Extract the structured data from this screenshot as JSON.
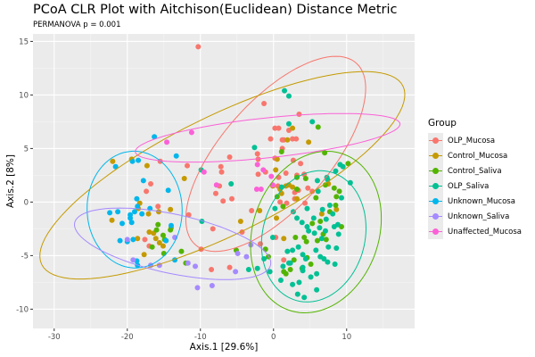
{
  "chart_data": {
    "type": "scatter",
    "title": "PCoA CLR Plot with Aitchison(Euclidean) Distance Metric",
    "subtitle": "PERMANOVA p = 0.001",
    "xlabel": "Axis.1   [29.6%]",
    "ylabel": "Axis.2   [8%]",
    "xlim": [
      -32.9,
      19.3
    ],
    "ylim": [
      -11.8,
      15.7
    ],
    "x_ticks": [
      -30,
      -20,
      -10,
      0,
      10
    ],
    "y_ticks": [
      15,
      10,
      5,
      0,
      -5,
      -10
    ],
    "x_tick_labels": [
      "-30",
      "-20",
      "-10",
      "0",
      "10"
    ],
    "y_tick_labels": [
      "15",
      "10",
      "5",
      "0",
      "-5",
      "-10"
    ],
    "grid": true,
    "legend_title": "Group",
    "legend_position": "right",
    "series": [
      {
        "name": "OLP_Mucosa",
        "color": "#F8766D",
        "ellipse": {
          "cx": 0.3,
          "cy": 4.5,
          "rx": 16.5,
          "ry": 7.3,
          "angle": 48
        },
        "points": [
          [
            -10.3,
            14.5
          ],
          [
            -1.3,
            9.2
          ],
          [
            3.5,
            8.2
          ],
          [
            0.2,
            6.9
          ],
          [
            0.7,
            6.9
          ],
          [
            2.1,
            6.7
          ],
          [
            -0.4,
            5.9
          ],
          [
            1.2,
            5.8
          ],
          [
            1.4,
            5.8
          ],
          [
            2.6,
            5.9
          ],
          [
            3.1,
            5.9
          ],
          [
            1.2,
            5.0
          ],
          [
            -6,
            4.2
          ],
          [
            -2.2,
            4.5
          ],
          [
            -2.1,
            4.0
          ],
          [
            0.2,
            4.1
          ],
          [
            3.7,
            3.6
          ],
          [
            2.7,
            3.9
          ],
          [
            -7.2,
            3.3
          ],
          [
            -7.1,
            2.8
          ],
          [
            -1.1,
            2.8
          ],
          [
            0.7,
            2.3
          ],
          [
            3.2,
            2.5
          ],
          [
            4.2,
            2.6
          ],
          [
            -2.1,
            2.6
          ],
          [
            1.7,
            2.7
          ],
          [
            3.4,
            1.1
          ],
          [
            5.3,
            1.0
          ],
          [
            0.6,
            1.5
          ],
          [
            4.7,
            1.3
          ],
          [
            2.9,
            0.9
          ],
          [
            4.3,
            -0.1
          ],
          [
            1.8,
            -0.1
          ],
          [
            0.9,
            0.0
          ],
          [
            2.9,
            0.3
          ],
          [
            -6.9,
            0.1
          ],
          [
            -15.5,
            3.8
          ],
          [
            -16.8,
            1.7
          ],
          [
            -17.4,
            1.0
          ],
          [
            -15.8,
            -0.4
          ],
          [
            -11.8,
            3.4
          ],
          [
            -11.6,
            -1.2
          ],
          [
            -7.4,
            1.5
          ],
          [
            -5.7,
            0.3
          ],
          [
            -17.6,
            -3.5
          ],
          [
            -17.0,
            -4.1
          ],
          [
            -1.8,
            -3.9
          ],
          [
            -9.9,
            -4.4
          ],
          [
            -8.5,
            -6.3
          ],
          [
            -6.0,
            -6.1
          ],
          [
            1.4,
            -5.4
          ],
          [
            -8.3,
            -2.5
          ],
          [
            -7.9,
            0.8
          ],
          [
            -4.3,
            -2.8
          ],
          [
            -3.0,
            -0.8
          ],
          [
            0.3,
            -3.3
          ]
        ]
      },
      {
        "name": "Control_Mucosa",
        "color": "#C49A00",
        "ellipse": {
          "cx": -7.0,
          "cy": 2.5,
          "rx": 27.5,
          "ry": 8.0,
          "angle": 26
        },
        "points": [
          [
            2.6,
            6.9
          ],
          [
            1.9,
            5.8
          ],
          [
            0.5,
            4.0
          ],
          [
            0.3,
            3.0
          ],
          [
            4.8,
            5.6
          ],
          [
            -0.1,
            1.5
          ],
          [
            1.7,
            1.5
          ],
          [
            2.1,
            1.6
          ],
          [
            2.6,
            1.4
          ],
          [
            0.9,
            1.2
          ],
          [
            1.1,
            0.8
          ],
          [
            3.2,
            0.3
          ],
          [
            -1.9,
            -0.8
          ],
          [
            0.4,
            -1.5
          ],
          [
            -4.5,
            -1.8
          ],
          [
            -19.4,
            4.0
          ],
          [
            -18.5,
            -0.6
          ],
          [
            -17.1,
            -1.1
          ],
          [
            -17.3,
            3.4
          ],
          [
            -18.3,
            -0.1
          ],
          [
            -15.7,
            -0.9
          ],
          [
            -16.4,
            -2.9
          ],
          [
            -16.1,
            -3.4
          ],
          [
            -17.0,
            -2.8
          ],
          [
            -15.6,
            -3.8
          ],
          [
            -15.1,
            -4.1
          ],
          [
            -22.0,
            3.8
          ],
          [
            -22.1,
            -1.7
          ],
          [
            -18.6,
            -3.4
          ],
          [
            -17.7,
            -4.9
          ],
          [
            1.4,
            -3.4
          ],
          [
            6.6,
            -1.1
          ],
          [
            7.5,
            1.7
          ],
          [
            8.6,
            -0.7
          ],
          [
            -14.0,
            -2.4
          ],
          [
            -14.1,
            -0.7
          ],
          [
            -12.2,
            2.2
          ]
        ]
      },
      {
        "name": "Control_Saliva",
        "color": "#53B400",
        "ellipse": {
          "cx": 5.8,
          "cy": -2.8,
          "rx": 11.2,
          "ry": 8.6,
          "angle": 70
        },
        "points": [
          [
            6.1,
            7.0
          ],
          [
            1.1,
            4.7
          ],
          [
            7.0,
            4.6
          ],
          [
            3.2,
            2.3
          ],
          [
            4.4,
            2.2
          ],
          [
            3.2,
            1.2
          ],
          [
            7.1,
            1.6
          ],
          [
            10.2,
            3.6
          ],
          [
            8.3,
            1.3
          ],
          [
            9.0,
            1.0
          ],
          [
            -15.8,
            -2.1
          ],
          [
            -16.0,
            -2.6
          ],
          [
            -15.1,
            -3.1
          ],
          [
            -14.9,
            -3.5
          ],
          [
            -16.6,
            -4.2
          ],
          [
            -15.0,
            -4.8
          ],
          [
            -12.6,
            -4.6
          ],
          [
            -14.1,
            -2.6
          ],
          [
            -12.0,
            -5.7
          ],
          [
            -5.1,
            -4.5
          ],
          [
            0.5,
            0.5
          ],
          [
            1.3,
            -0.4
          ],
          [
            5.8,
            0.4
          ],
          [
            7.7,
            -0.9
          ],
          [
            6.4,
            -1.8
          ],
          [
            8.5,
            -0.3
          ],
          [
            -1.1,
            -4.4
          ],
          [
            -0.7,
            -5.1
          ],
          [
            4.5,
            -3.7
          ],
          [
            4.2,
            -3.3
          ],
          [
            3.0,
            -3.3
          ],
          [
            5.3,
            -2.0
          ],
          [
            7.2,
            -3.5
          ],
          [
            9.3,
            -2.3
          ],
          [
            2.8,
            -5.4
          ],
          [
            2.3,
            -6.3
          ],
          [
            1.4,
            -6.5
          ],
          [
            5.1,
            -5.8
          ],
          [
            6.8,
            -3.0
          ],
          [
            6.0,
            -3.6
          ],
          [
            8.6,
            0.5
          ],
          [
            3.9,
            -6.2
          ],
          [
            1.7,
            -6.7
          ],
          [
            4.6,
            -5.2
          ]
        ]
      },
      {
        "name": "OLP_Saliva",
        "color": "#00C094",
        "ellipse": {
          "cx": 5.5,
          "cy": -3.2,
          "rx": 9.0,
          "ry": 7.0,
          "angle": 75
        },
        "points": [
          [
            1.5,
            10.4
          ],
          [
            2.1,
            9.9
          ],
          [
            2.1,
            7.3
          ],
          [
            5.3,
            7.5
          ],
          [
            -2.6,
            5.1
          ],
          [
            -9.9,
            3.0
          ],
          [
            -5.8,
            1.7
          ],
          [
            -9.8,
            -1.8
          ],
          [
            5.9,
            -6.7
          ],
          [
            7.4,
            2.1
          ],
          [
            9.1,
            3.5
          ],
          [
            8.5,
            2.9
          ],
          [
            6.0,
            2.0
          ],
          [
            6.1,
            1.0
          ],
          [
            7.3,
            2.3
          ],
          [
            9.3,
            0.4
          ],
          [
            8.1,
            -1.1
          ],
          [
            6.7,
            -0.7
          ],
          [
            7.7,
            -0.3
          ],
          [
            8.3,
            -2.3
          ],
          [
            8.8,
            -2.1
          ],
          [
            7.1,
            -2.7
          ],
          [
            4.6,
            -2.3
          ],
          [
            7.2,
            -1.6
          ],
          [
            5.5,
            -1.5
          ],
          [
            3.9,
            -1.9
          ],
          [
            4.6,
            -0.6
          ],
          [
            8.6,
            -4.3
          ],
          [
            8.4,
            -5.8
          ],
          [
            6.4,
            -5.1
          ],
          [
            4.4,
            -5.3
          ],
          [
            5.8,
            -4.5
          ],
          [
            6.9,
            -5.3
          ],
          [
            3.4,
            -4.2
          ],
          [
            4.0,
            -6.1
          ],
          [
            2.6,
            -4.5
          ],
          [
            2.1,
            -5.7
          ],
          [
            4.0,
            -4.9
          ],
          [
            3.5,
            -7.5
          ],
          [
            5.1,
            -7.0
          ],
          [
            1.0,
            -7.3
          ],
          [
            4.0,
            -6.4
          ],
          [
            2.6,
            -7.7
          ],
          [
            2.3,
            -5.7
          ],
          [
            1.3,
            -6.0
          ],
          [
            1.9,
            -4.6
          ],
          [
            4.8,
            -2.7
          ],
          [
            6.6,
            -3.4
          ],
          [
            8.9,
            -3.0
          ],
          [
            7.5,
            -4.2
          ],
          [
            6.3,
            -2.4
          ],
          [
            5.6,
            -2.9
          ],
          [
            7.4,
            -5.6
          ],
          [
            1.1,
            1.4
          ],
          [
            0.2,
            -0.6
          ],
          [
            -0.5,
            -6.5
          ],
          [
            -1.3,
            -5.3
          ],
          [
            -0.1,
            -3.3
          ],
          [
            3.3,
            -8.6
          ],
          [
            4.2,
            -8.9
          ],
          [
            5.9,
            -8.2
          ],
          [
            3.2,
            -1.5
          ],
          [
            2.7,
            -0.9
          ],
          [
            -2.2,
            -6.2
          ],
          [
            -3.4,
            -6.3
          ],
          [
            10.5,
            1.8
          ],
          [
            9.5,
            3.3
          ]
        ]
      },
      {
        "name": "Unknown_Mucosa",
        "color": "#00B6EB",
        "ellipse": {
          "cx": -19.0,
          "cy": -0.7,
          "rx": 7.9,
          "ry": 6.5,
          "angle": 92
        },
        "points": [
          [
            -18.5,
            3.9
          ],
          [
            -19.3,
            3.8
          ],
          [
            -21.6,
            3.3
          ],
          [
            -17.8,
            2.0
          ],
          [
            -14.4,
            1.1
          ],
          [
            -18.7,
            0.3
          ],
          [
            -16.9,
            -0.6
          ],
          [
            -18.6,
            -0.4
          ],
          [
            -19.0,
            -0.9
          ],
          [
            -21.3,
            -0.9
          ],
          [
            -19.6,
            -1.2
          ],
          [
            -19.6,
            -1.5
          ],
          [
            -22.4,
            -1.0
          ],
          [
            -19.4,
            -1.9
          ],
          [
            -20.7,
            -2.0
          ],
          [
            -20.0,
            -3.7
          ],
          [
            -21.0,
            -3.6
          ],
          [
            -18.7,
            -5.5
          ],
          [
            -18.6,
            -5.9
          ],
          [
            -13.5,
            -5.4
          ],
          [
            -14.0,
            -2.2
          ],
          [
            -14.7,
            -3.6
          ],
          [
            -19.2,
            -3.5
          ],
          [
            -16.3,
            6.1
          ],
          [
            -13.3,
            4.3
          ],
          [
            -18.0,
            -1.1
          ]
        ]
      },
      {
        "name": "Unknown_Saliva",
        "color": "#A58AFF",
        "ellipse": {
          "cx": -13.8,
          "cy": -3.9,
          "rx": 13.7,
          "ry": 4.0,
          "angle": -12
        },
        "points": [
          [
            -20.0,
            -3.5
          ],
          [
            -13.5,
            -3.3
          ],
          [
            -19.2,
            -5.4
          ],
          [
            -16.8,
            -5.9
          ],
          [
            -10.7,
            -6.0
          ],
          [
            -5.2,
            -6.5
          ],
          [
            -3.7,
            -5.1
          ],
          [
            -15.6,
            -5.9
          ],
          [
            -3.1,
            -4.0
          ],
          [
            -4.9,
            -4.8
          ],
          [
            -10.4,
            -8.0
          ],
          [
            -8.4,
            -7.8
          ],
          [
            -11.7,
            -5.7
          ]
        ]
      },
      {
        "name": "Unaffected_Mucosa",
        "color": "#FB61D7",
        "ellipse": {
          "cx": -0.8,
          "cy": 6.0,
          "rx": 18.2,
          "ry": 2.7,
          "angle": 6
        },
        "points": [
          [
            -9.5,
            2.8
          ],
          [
            -7.8,
            1.6
          ],
          [
            -2.3,
            1.2
          ],
          [
            -0.3,
            2.4
          ],
          [
            -14.6,
            5.6
          ],
          [
            -11.2,
            6.5
          ],
          [
            -1.7,
            1.2
          ],
          [
            -0.1,
            1.6
          ],
          [
            -1.4,
            3.0
          ],
          [
            -2.2,
            3.5
          ]
        ]
      }
    ]
  }
}
